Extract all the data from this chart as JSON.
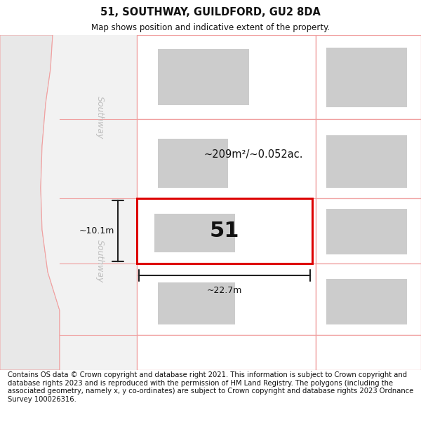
{
  "title": "51, SOUTHWAY, GUILDFORD, GU2 8DA",
  "subtitle": "Map shows position and indicative extent of the property.",
  "footer": "Contains OS data © Crown copyright and database right 2021. This information is subject to Crown copyright and database rights 2023 and is reproduced with the permission of HM Land Registry. The polygons (including the associated geometry, namely x, y co-ordinates) are subject to Crown copyright and database rights 2023 Ordnance Survey 100026316.",
  "bg_color": "#ffffff",
  "road_fill": "#f2f2f2",
  "road_edge_color": "#f0a0a0",
  "plot_outline_color": "#f0a0a0",
  "highlight_color": "#dd0000",
  "building_fill": "#cccccc",
  "street_label": "Southway",
  "label_51": "51",
  "area_label": "~209m²/~0.052ac.",
  "width_label": "~22.7m",
  "height_label": "~10.1m",
  "title_fontsize": 10.5,
  "subtitle_fontsize": 8.5,
  "footer_fontsize": 7.2
}
